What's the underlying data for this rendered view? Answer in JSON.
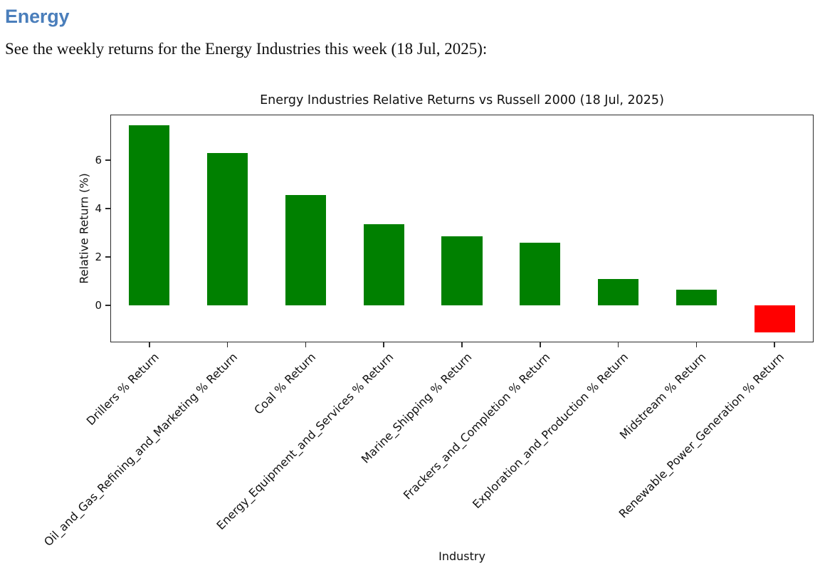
{
  "page": {
    "heading": "Energy",
    "heading_color": "#4A7EBB",
    "intro": "See the weekly returns for the Energy Industries this week (18 Jul, 2025):"
  },
  "chart_data": {
    "type": "bar",
    "title": "Energy Industries Relative Returns vs Russell 2000 (18 Jul, 2025)",
    "xlabel": "Industry",
    "ylabel": "Relative Return (%)",
    "categories": [
      "Drillers % Return",
      "Oil_and_Gas_Refining_and_Marketing % Return",
      "Coal % Return",
      "Energy_Equipment_and_Services % Return",
      "Marine_Shipping % Return",
      "Frackers_and_Completion % Return",
      "Exploration_and_Production % Return",
      "Midstream % Return",
      "Renewable_Power_Generation % Return"
    ],
    "values": [
      7.45,
      6.3,
      4.55,
      3.35,
      2.85,
      2.6,
      1.1,
      0.65,
      -1.1
    ],
    "bar_colors": {
      "positive": "#008000",
      "negative": "#FF0000"
    },
    "yticks": [
      0,
      2,
      4,
      6
    ],
    "ylim": [
      -1.52,
      7.88
    ],
    "bar_width_fraction": 0.52,
    "grid": false,
    "legend_position": "none"
  }
}
